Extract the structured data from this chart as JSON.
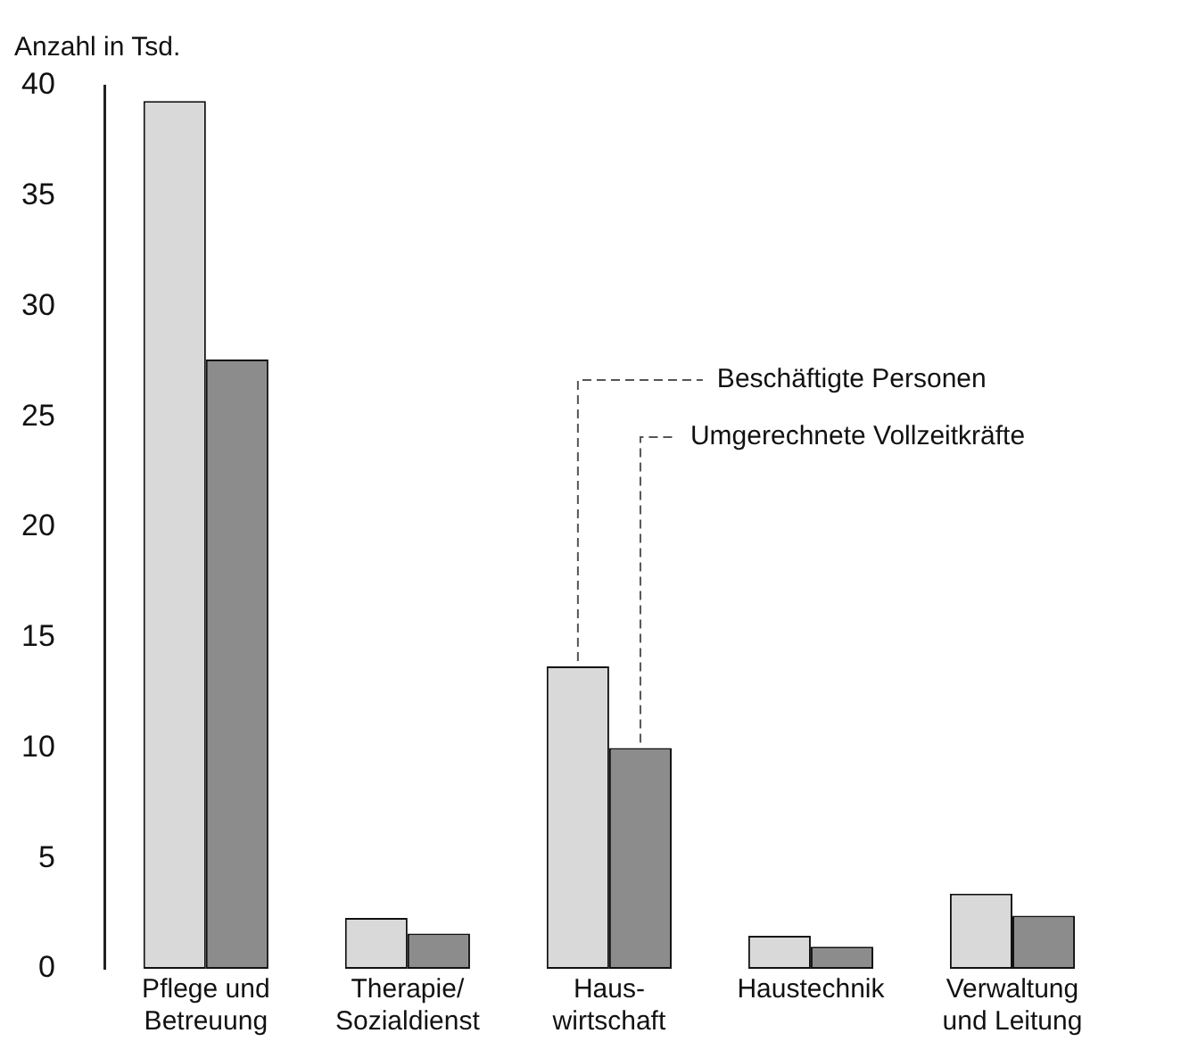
{
  "chart_data": {
    "type": "bar",
    "ylabel": "Anzahl in Tsd.",
    "categories": [
      "Pflege und\nBetreuung",
      "Therapie/\nSozialdienst",
      "Haus-\nwirtschaft",
      "Haustechnik",
      "Verwaltung\nund Leitung"
    ],
    "series": [
      {
        "name": "Beschäftigte Personen",
        "color": "#d9d9d9",
        "values": [
          39.3,
          2.3,
          13.7,
          1.5,
          3.4
        ]
      },
      {
        "name": "Umgerechnete Vollzeitkräfte",
        "color": "#8c8c8c",
        "values": [
          27.6,
          1.6,
          10.0,
          1.0,
          2.4
        ]
      }
    ],
    "ylim": [
      0,
      40
    ],
    "yticks": [
      0,
      5,
      10,
      15,
      20,
      25,
      30,
      35,
      40
    ],
    "grid": false,
    "legend": false
  }
}
